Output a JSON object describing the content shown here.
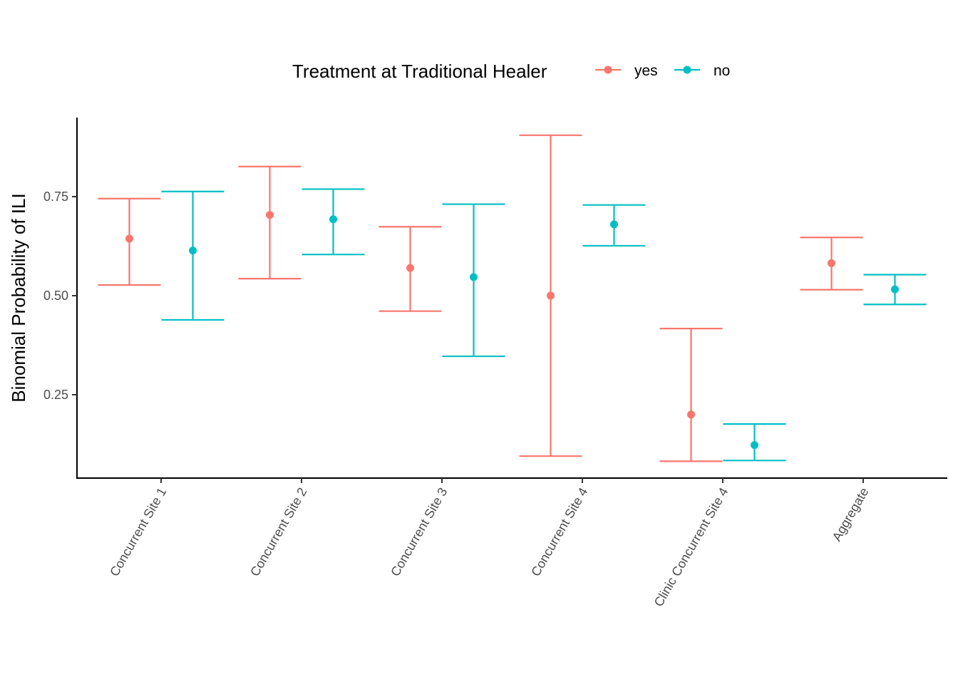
{
  "chart_data": {
    "type": "errorbar",
    "title": "",
    "xlabel": "",
    "ylabel": "Binomial Probability of ILI",
    "ylim": [
      0.06,
      0.96
    ],
    "yticks": [
      0.25,
      0.5,
      0.75
    ],
    "ytick_labels": [
      "0.25",
      "0.50",
      "0.75"
    ],
    "grid": false,
    "legend": {
      "title": "Treatment at Traditional Healer",
      "position": "top"
    },
    "categories": [
      "Concurrent Site 1",
      "Concurrent Site 2",
      "Concurrent Site 3",
      "Concurrent Site 4",
      "Clinic Concurrent Site 4",
      "Aggregate"
    ],
    "series": [
      {
        "name": "yes",
        "color": "#F8766D",
        "values": [
          0.644,
          0.704,
          0.57,
          0.5,
          0.2,
          0.582
        ],
        "lower": [
          0.527,
          0.543,
          0.461,
          0.095,
          0.082,
          0.515
        ],
        "upper": [
          0.745,
          0.826,
          0.674,
          0.905,
          0.417,
          0.647
        ]
      },
      {
        "name": "no",
        "color": "#00BFC4",
        "values": [
          0.614,
          0.693,
          0.547,
          0.68,
          0.123,
          0.516
        ],
        "lower": [
          0.439,
          0.604,
          0.347,
          0.626,
          0.084,
          0.478
        ],
        "upper": [
          0.763,
          0.769,
          0.731,
          0.729,
          0.176,
          0.553
        ]
      }
    ]
  }
}
